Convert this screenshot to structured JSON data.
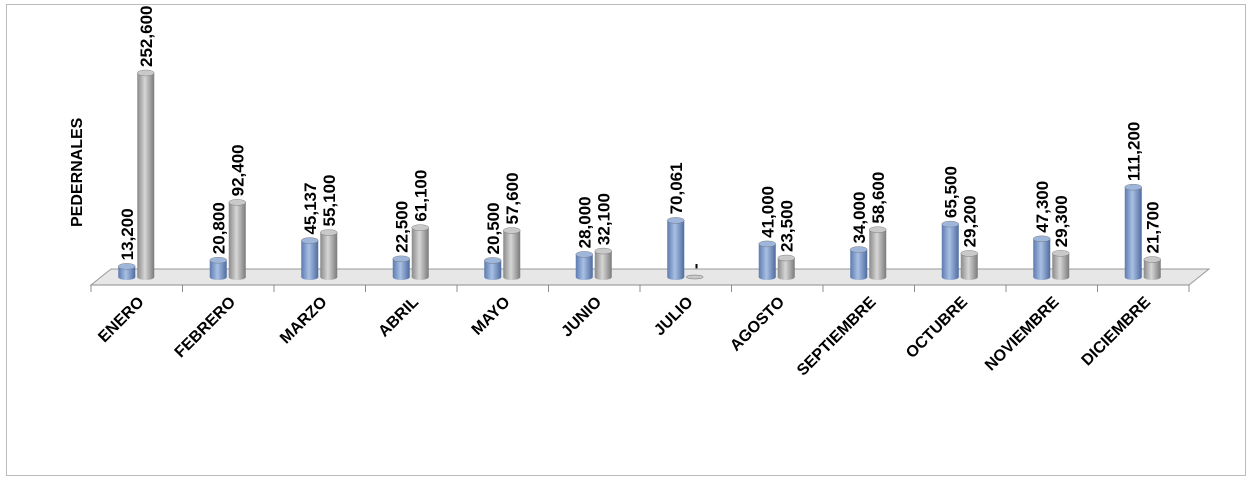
{
  "chart_data": {
    "type": "bar",
    "title": "",
    "ylabel": "PEDERNALES",
    "xlabel": "",
    "categories": [
      "ENERO",
      "FEBRERO",
      "MARZO",
      "ABRIL",
      "MAYO",
      "JUNIO",
      "JULIO",
      "AGOSTO",
      "SEPTIEMBRE",
      "OCTUBRE",
      "NOVIEMBRE",
      "DICIEMBRE"
    ],
    "series": [
      {
        "values": [
          13200,
          20800,
          45137,
          22500,
          20500,
          28000,
          70061,
          41000,
          34000,
          65500,
          47300,
          111200
        ],
        "labels": [
          "13,200",
          "20,800",
          "45,137",
          "22,500",
          "20,500",
          "28,000",
          "70,061",
          "41,000",
          "34,000",
          "65,500",
          "47,300",
          "111,200"
        ],
        "color": "#7f9ccb"
      },
      {
        "values": [
          252600,
          92400,
          55100,
          61100,
          57600,
          32100,
          0,
          23500,
          58600,
          29200,
          29300,
          21700
        ],
        "labels": [
          "252,600",
          "92,400",
          "55,100",
          "61,100",
          "57,600",
          "32,100",
          "-",
          "23,500",
          "58,600",
          "29,200",
          "29,300",
          "21,700"
        ],
        "color": "#a6a6a6"
      }
    ],
    "ylim": [
      0,
      260000
    ],
    "grid": false,
    "legend": "none"
  }
}
